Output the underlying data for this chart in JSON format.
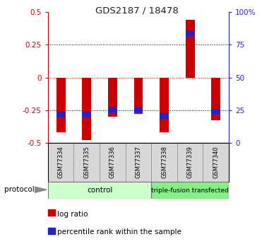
{
  "title": "GDS2187 / 18478",
  "samples": [
    "GSM77334",
    "GSM77335",
    "GSM77336",
    "GSM77337",
    "GSM77338",
    "GSM77339",
    "GSM77340"
  ],
  "log_ratios": [
    -0.42,
    -0.48,
    -0.3,
    -0.28,
    -0.42,
    0.44,
    -0.33
  ],
  "pct_ranks_value": [
    -0.305,
    -0.305,
    -0.27,
    -0.27,
    -0.315,
    0.355,
    -0.28
  ],
  "pct_bar_height": 0.04,
  "bar_width": 0.35,
  "pct_bar_width": 0.35,
  "ylim": [
    -0.5,
    0.5
  ],
  "yticks_left": [
    -0.5,
    -0.25,
    0,
    0.25,
    0.5
  ],
  "yticks_left_labels": [
    "-0.5",
    "-0.25",
    "0",
    "0.25",
    "0.5"
  ],
  "yticks_right": [
    0,
    25,
    50,
    75,
    100
  ],
  "yticks_right_labels": [
    "0",
    "25",
    "50",
    "75",
    "100%"
  ],
  "yticks_right_pos": [
    -0.5,
    -0.25,
    0,
    0.25,
    0.5
  ],
  "log_ratio_color": "#cc0000",
  "percentile_color": "#2222cc",
  "zero_line_color": "#cc0000",
  "grid_color": "black",
  "control_label": "control",
  "triple_label": "triple-fusion transfected",
  "protocol_label": "protocol",
  "legend_log": "log ratio",
  "legend_pct": "percentile rank within the sample",
  "control_bg": "#ccffcc",
  "triple_bg": "#88ee88",
  "left_axis_color": "#cc0000",
  "right_axis_color": "#2222cc",
  "n_control": 4,
  "n_triple": 3
}
